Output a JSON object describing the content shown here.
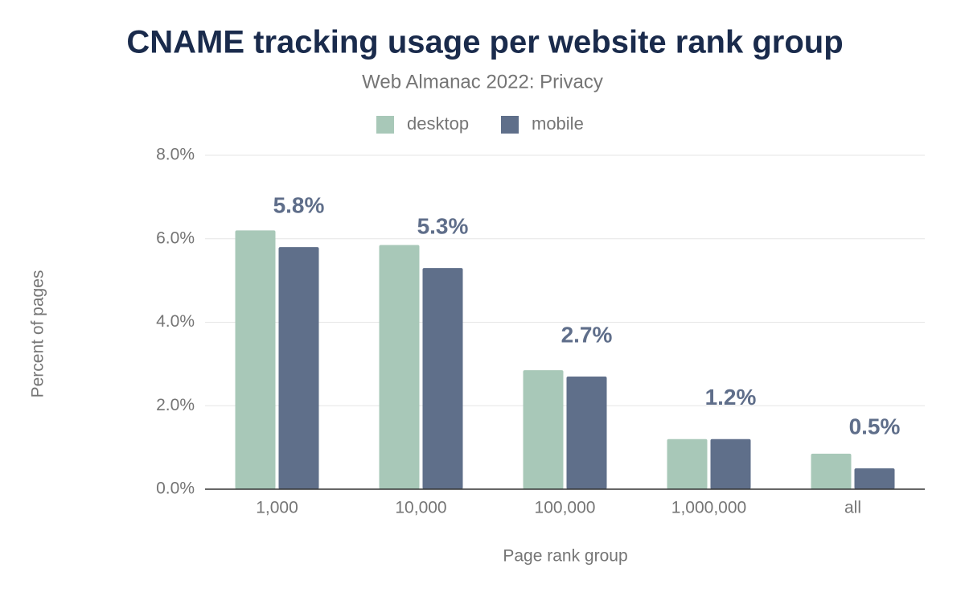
{
  "chart_data": {
    "type": "bar",
    "title": "CNAME tracking usage per website rank group",
    "subtitle": "Web Almanac 2022: Privacy",
    "x_label": "Page rank group",
    "y_label": "Percent of pages",
    "categories": [
      "1,000",
      "10,000",
      "100,000",
      "1,000,000",
      "all"
    ],
    "series": [
      {
        "name": "desktop",
        "color": "#a8c8b8",
        "values": [
          6.2,
          5.85,
          2.85,
          1.2,
          0.85
        ]
      },
      {
        "name": "mobile",
        "color": "#5f6f8a",
        "values": [
          5.8,
          5.3,
          2.7,
          1.2,
          0.5
        ],
        "value_labels": [
          "5.8%",
          "5.3%",
          "2.7%",
          "1.2%",
          "0.5%"
        ]
      }
    ],
    "ylim": [
      0,
      8
    ],
    "yticks": [
      {
        "value": 0,
        "label": "0.0%"
      },
      {
        "value": 2,
        "label": "2.0%"
      },
      {
        "value": 4,
        "label": "4.0%"
      },
      {
        "value": 6,
        "label": "6.0%"
      },
      {
        "value": 8,
        "label": "8.0%"
      }
    ],
    "grid": true,
    "legend": "top"
  }
}
